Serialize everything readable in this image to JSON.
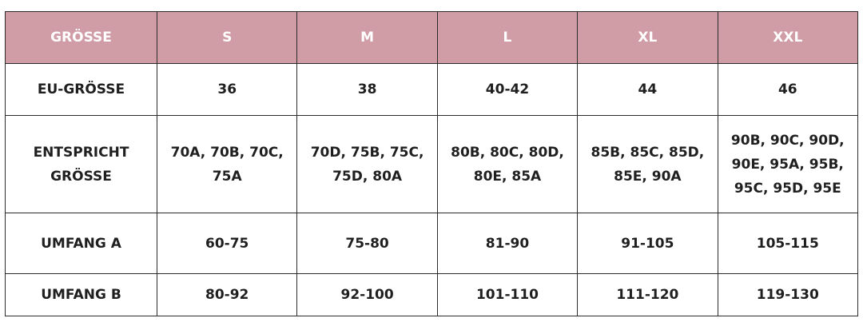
{
  "table": {
    "header": [
      "GRÖSSE",
      "S",
      "M",
      "L",
      "XL",
      "XXL"
    ],
    "rows": [
      [
        "EU-GRÖSSE",
        "36",
        "38",
        "40-42",
        "44",
        "46"
      ],
      [
        "ENTSPRICHT GRÖSSE",
        "70A, 70B, 70C, 75A",
        "70D, 75B, 75C, 75D, 80A",
        "80B, 80C, 80D, 80E, 85A",
        "85B, 85C, 85D, 85E, 90A",
        "90B, 90C, 90D, 90E, 95A, 95B, 95C, 95D, 95E"
      ],
      [
        "UMFANG A",
        "60-75",
        "75-80",
        "81-90",
        "91-105",
        "105-115"
      ],
      [
        "UMFANG B",
        "80-92",
        "92-100",
        "101-110",
        "111-120",
        "119-130"
      ]
    ]
  }
}
